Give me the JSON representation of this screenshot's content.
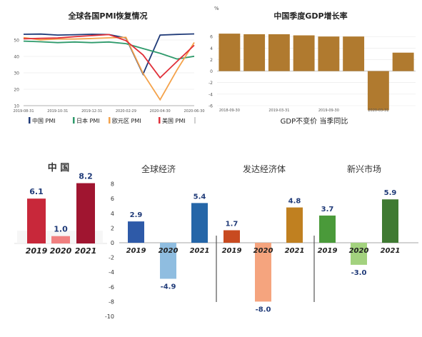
{
  "chart_data": [
    {
      "type": "line",
      "title": "全球各国PMI恢复情况",
      "ylabel_unit": "",
      "ylim": [
        10,
        60
      ],
      "yticks": [
        "10",
        "20",
        "30",
        "40",
        "50"
      ],
      "x_ticks": [
        "2019-08-31",
        "2019-10-31",
        "2019-12-31",
        "2020-02-29",
        "2020-04-30",
        "2020-06-30"
      ],
      "x": [
        "2019-08",
        "2019-09",
        "2019-10",
        "2019-11",
        "2019-12",
        "2020-01",
        "2020-02",
        "2020-03",
        "2020-04",
        "2020-05",
        "2020-06"
      ],
      "grid": true,
      "legend_position": "bottom",
      "series": [
        {
          "name": "中国 PMI",
          "color": "#1f3a78",
          "values": [
            53.5,
            53.6,
            53.0,
            53.2,
            53.5,
            53.3,
            51.2,
            29.2,
            53.0,
            53.4,
            53.7
          ]
        },
        {
          "name": "日本 PMI",
          "color": "#2e9a6b",
          "values": [
            49.3,
            48.9,
            48.4,
            48.8,
            48.4,
            48.8,
            47.8,
            44.8,
            41.9,
            38.4,
            40.1
          ]
        },
        {
          "name": "欧元区 PMI",
          "color": "#f4a24a",
          "values": [
            51.5,
            50.1,
            50.6,
            50.6,
            50.9,
            51.3,
            51.6,
            29.7,
            13.6,
            31.9,
            48.5
          ]
        },
        {
          "name": "美国 PMI",
          "color": "#e0303a",
          "values": [
            50.7,
            51.0,
            51.2,
            52.0,
            52.7,
            53.3,
            49.6,
            40.9,
            27.0,
            37.0,
            46.8
          ]
        }
      ]
    },
    {
      "type": "bar",
      "title": "中国季度GDP增长率",
      "ylabel_unit": "%",
      "ylim": [
        -6,
        8
      ],
      "yticks": [
        "-6",
        "-4",
        "-2",
        "0",
        "2",
        "4",
        "6"
      ],
      "x_ticks": [
        "2018-09-30",
        "2019-03-31",
        "2019-09-30",
        "2020-03-31"
      ],
      "categories": [
        "2018-09-30",
        "2018-12-31",
        "2019-03-31",
        "2019-06-30",
        "2019-09-30",
        "2019-12-31",
        "2020-03-31",
        "2020-06-30"
      ],
      "values": [
        6.5,
        6.4,
        6.4,
        6.2,
        6.0,
        6.0,
        -6.8,
        3.2
      ],
      "color": "#b07a2f",
      "footer": "GDP不变价 当季同比"
    },
    {
      "type": "bar",
      "title": "中 国",
      "categories": [
        "2019",
        "2020",
        "2021"
      ],
      "values": [
        6.1,
        1.0,
        8.2
      ],
      "labels": [
        "6.1",
        "1.0",
        "8.2"
      ],
      "colors": [
        "#c8283a",
        "#f08080",
        "#a01530"
      ]
    },
    {
      "type": "bar",
      "panels": [
        {
          "title": "全球经济",
          "categories": [
            "2019",
            "2020",
            "2021"
          ],
          "values": [
            2.9,
            -4.9,
            5.4
          ],
          "labels": [
            "2.9",
            "-4.9",
            "5.4"
          ],
          "colors": [
            "#2e5aa8",
            "#8fbde0",
            "#2566a8"
          ]
        },
        {
          "title": "发达经济体",
          "categories": [
            "2019",
            "2020",
            "2021"
          ],
          "values": [
            1.7,
            -8.0,
            4.8
          ],
          "labels": [
            "1.7",
            "-8.0",
            "4.8"
          ],
          "colors": [
            "#c84a20",
            "#f5a47e",
            "#c08020"
          ]
        },
        {
          "title": "新兴市场",
          "categories": [
            "2019",
            "2020",
            "2021"
          ],
          "values": [
            3.7,
            -3.0,
            5.9
          ],
          "labels": [
            "3.7",
            "-3.0",
            "5.9"
          ],
          "colors": [
            "#4a9a3a",
            "#a3d27e",
            "#3f7a32"
          ]
        }
      ],
      "ylim": [
        -10,
        8
      ],
      "yticks": [
        "8",
        "6",
        "4",
        "2",
        "0",
        "-2",
        "-4",
        "-6",
        "-8",
        "-10"
      ]
    }
  ]
}
